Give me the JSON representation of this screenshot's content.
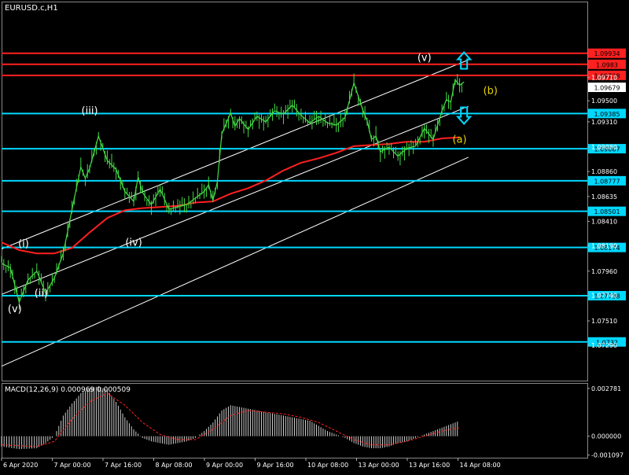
{
  "chart_data": [
    {
      "type": "line",
      "title": "EURUSD.c,H1",
      "ylim": [
        1.0697,
        1.1039
      ],
      "price_ticks": [
        "1.09710",
        "1.09500",
        "1.09310",
        "1.09080",
        "1.08860",
        "1.08635",
        "1.08410",
        "1.08190",
        "1.07960",
        "1.07740",
        "1.07510",
        "1.07290"
      ],
      "x_ticks": [
        "6 Apr 2020",
        "7 Apr 00:00",
        "7 Apr 16:00",
        "8 Apr 08:00",
        "9 Apr 00:00",
        "9 Apr 16:00",
        "10 Apr 08:00",
        "13 Apr 00:00",
        "13 Apr 16:00",
        "14 Apr 08:00"
      ],
      "current_price": "1.09679",
      "horizontal_levels": [
        {
          "value": 1.0983,
          "label": "1.0983",
          "color": "#ff2020"
        },
        {
          "value": 1.0993,
          "label": "1.09934",
          "color": "#ff2020"
        },
        {
          "value": 1.0973,
          "label": "1.09728",
          "color": "#ff2020"
        },
        {
          "value": 1.09385,
          "label": "1.09385",
          "color": "#00d8ff"
        },
        {
          "value": 1.09067,
          "label": "1.09067",
          "color": "#00d8ff"
        },
        {
          "value": 1.08777,
          "label": "1.08777",
          "color": "#00d8ff"
        },
        {
          "value": 1.08501,
          "label": "1.08501",
          "color": "#00d8ff"
        },
        {
          "value": 1.08174,
          "label": "1.08174",
          "color": "#00d8ff"
        },
        {
          "value": 1.07738,
          "label": "1.07738",
          "color": "#00d8ff"
        },
        {
          "value": 1.0732,
          "label": "1.0732",
          "color": "#00d8ff"
        }
      ],
      "channel_lines": [
        {
          "x": [
            0,
            106
          ],
          "y": [
            1.0816,
            1.0987
          ]
        },
        {
          "x": [
            0,
            106
          ],
          "y": [
            1.0775,
            1.0945
          ]
        },
        {
          "x": [
            0,
            106
          ],
          "y": [
            1.071,
            1.0899
          ]
        }
      ],
      "price": {
        "x": [
          0,
          2,
          4,
          6,
          8,
          10,
          12,
          14,
          16,
          18,
          19,
          20,
          22,
          24,
          26,
          28,
          30,
          31,
          32,
          34,
          36,
          38,
          40,
          42,
          44,
          46,
          47,
          48,
          49,
          50,
          52,
          53,
          54,
          56,
          58,
          60,
          62,
          64,
          66,
          68,
          70,
          72,
          74,
          76,
          78,
          80,
          82,
          83,
          84,
          85,
          86,
          88,
          90,
          92,
          94,
          96,
          98,
          100,
          101,
          102,
          103,
          104,
          105
        ],
        "y": [
          1.0803,
          1.0799,
          1.0768,
          1.0788,
          1.0796,
          1.0776,
          1.079,
          1.0812,
          1.0852,
          1.089,
          1.088,
          1.0889,
          1.0918,
          1.0896,
          1.0888,
          1.0868,
          1.0859,
          1.0881,
          1.0867,
          1.0856,
          1.087,
          1.0852,
          1.0854,
          1.0856,
          1.0862,
          1.0868,
          1.0874,
          1.086,
          1.0877,
          1.092,
          1.0939,
          1.0927,
          1.0934,
          1.0924,
          1.0936,
          1.0931,
          1.0941,
          1.0938,
          1.0946,
          1.0937,
          1.093,
          1.0936,
          1.093,
          1.0928,
          1.0935,
          1.0966,
          1.0942,
          1.0932,
          1.0915,
          1.0918,
          1.0904,
          1.0908,
          1.09,
          1.0907,
          1.0909,
          1.0925,
          1.0915,
          1.0941,
          1.0951,
          1.0949,
          1.0969,
          1.0964,
          1.0967
        ]
      },
      "moving_average": {
        "color": "#ff2020",
        "x": [
          0,
          4,
          8,
          12,
          16,
          20,
          24,
          28,
          32,
          36,
          40,
          44,
          48,
          52,
          56,
          60,
          64,
          68,
          72,
          76,
          80,
          84,
          88,
          92,
          96,
          100,
          104
        ],
        "y": [
          1.0822,
          1.0815,
          1.0812,
          1.0812,
          1.0817,
          1.0831,
          1.0844,
          1.0851,
          1.0853,
          1.0854,
          1.0855,
          1.0858,
          1.0859,
          1.0866,
          1.0871,
          1.0878,
          1.0887,
          1.0894,
          1.0898,
          1.0903,
          1.0909,
          1.091,
          1.0911,
          1.0913,
          1.0913,
          1.0916,
          1.0917
        ]
      },
      "wave_labels": [
        {
          "text": "(v)",
          "x": 3,
          "y": 1.0759,
          "color": "#ffffff"
        },
        {
          "text": "(i)",
          "x": 5,
          "y": 1.0818,
          "color": "#ffffff"
        },
        {
          "text": "(ii)",
          "x": 9,
          "y": 1.0773,
          "color": "#ffffff"
        },
        {
          "text": "(iii)",
          "x": 20,
          "y": 1.0938,
          "color": "#ffffff"
        },
        {
          "text": "(iv)",
          "x": 30,
          "y": 1.0819,
          "color": "#ffffff"
        },
        {
          "text": "(v)",
          "x": 96,
          "y": 1.0986,
          "color": "#ffffff"
        },
        {
          "text": "(b)",
          "x": 111,
          "y": 1.0956,
          "color": "#e8d400"
        },
        {
          "text": "(a)",
          "x": 104,
          "y": 1.0912,
          "color": "#e8d400"
        }
      ],
      "arrows": [
        {
          "direction": "up",
          "x": 105,
          "y": 1.0986,
          "color": "#00d8ff"
        },
        {
          "direction": "down",
          "x": 105,
          "y": 1.0937,
          "color": "#00d8ff"
        }
      ]
    },
    {
      "type": "bar",
      "title": "MACD(12,26,9) 0.000969 0.000509",
      "ylim": [
        -0.00125,
        0.00305
      ],
      "y_ticks": [
        "0.002781",
        "0.000000",
        "-0.001097"
      ],
      "histogram": {
        "x": [
          0,
          4,
          8,
          10,
          12,
          14,
          16,
          18,
          20,
          22,
          24,
          26,
          28,
          30,
          32,
          34,
          36,
          38,
          40,
          42,
          44,
          46,
          48,
          50,
          52,
          54,
          56,
          58,
          60,
          62,
          64,
          66,
          68,
          70,
          72,
          74,
          76,
          78,
          80,
          82,
          84,
          86,
          88,
          90,
          92,
          94,
          96,
          98,
          100,
          102,
          104
        ],
        "y": [
          -0.0006,
          -0.00075,
          -0.0007,
          -0.0004,
          0.0,
          0.0012,
          0.0019,
          0.0025,
          0.0028,
          0.0029,
          0.0027,
          0.002,
          0.0011,
          0.0004,
          -0.0001,
          -0.0003,
          -0.0004,
          -0.0005,
          -0.0004,
          -0.0003,
          -0.0001,
          0.0003,
          0.0008,
          0.0015,
          0.0018,
          0.0017,
          0.0016,
          0.0015,
          0.0014,
          0.0013,
          0.0012,
          0.0011,
          0.001,
          0.0009,
          0.0006,
          0.0003,
          0.0001,
          -0.0001,
          -0.0004,
          -0.0006,
          -0.0007,
          -0.0007,
          -0.0006,
          -0.0004,
          -0.0003,
          -0.0001,
          0.0001,
          0.0003,
          0.0005,
          0.0007,
          0.0009
        ]
      },
      "signal": {
        "color": "#ff2020",
        "x": [
          0,
          8,
          12,
          16,
          20,
          24,
          28,
          32,
          36,
          40,
          44,
          48,
          52,
          56,
          60,
          64,
          68,
          72,
          76,
          80,
          84,
          88,
          92,
          96,
          100,
          104
        ],
        "y": [
          -0.0005,
          -0.0006,
          -0.0003,
          0.001,
          0.002,
          0.0025,
          0.0018,
          0.0008,
          0.0001,
          -0.0002,
          -0.0002,
          0.0004,
          0.0012,
          0.0015,
          0.0014,
          0.0013,
          0.0011,
          0.0008,
          0.0003,
          -0.0002,
          -0.0005,
          -0.0005,
          -0.0003,
          0.0,
          0.0003,
          0.0005
        ]
      }
    }
  ]
}
